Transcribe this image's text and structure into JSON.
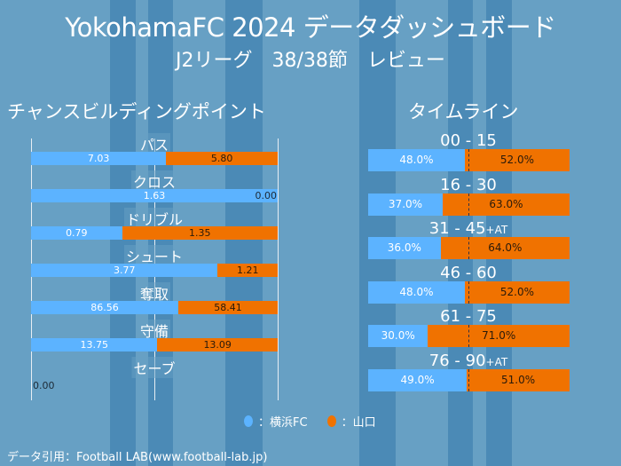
{
  "header": {
    "title": "YokohamaFC 2024 データダッシュボード",
    "subtitle": "J2リーグ　38/38節　レビュー"
  },
  "colors": {
    "home": "#5cb3ff",
    "away": "#f07200",
    "background": "#67a0c4"
  },
  "chance": {
    "title": "チャンスビルディングポイント",
    "rows": [
      {
        "label": "パス",
        "home": "7.03",
        "away": "5.80"
      },
      {
        "label": "クロス",
        "home": "1.63",
        "away": "0.00"
      },
      {
        "label": "ドリブル",
        "home": "0.79",
        "away": "1.35"
      },
      {
        "label": "シュート",
        "home": "3.77",
        "away": "1.21"
      },
      {
        "label": "奪取",
        "home": "86.56",
        "away": "58.41"
      },
      {
        "label": "守備",
        "home": "13.75",
        "away": "13.09"
      },
      {
        "label": "セーブ",
        "home": "0.00",
        "away": "0.00"
      }
    ]
  },
  "timeline": {
    "title": "タイムライン",
    "rows": [
      {
        "label": "00 - 15",
        "suffix": "",
        "home": "48.0%",
        "away": "52.0%"
      },
      {
        "label": "16 - 30",
        "suffix": "",
        "home": "37.0%",
        "away": "63.0%"
      },
      {
        "label": "31 - 45",
        "suffix": "+AT",
        "home": "36.0%",
        "away": "64.0%"
      },
      {
        "label": "46 - 60",
        "suffix": "",
        "home": "48.0%",
        "away": "52.0%"
      },
      {
        "label": "61 - 75",
        "suffix": "",
        "home": "30.0%",
        "away": "71.0%"
      },
      {
        "label": "76 - 90",
        "suffix": "+AT",
        "home": "49.0%",
        "away": "51.0%"
      }
    ]
  },
  "legend": {
    "home": "：横浜FC",
    "away": "：山口"
  },
  "footer": "データ引用：Football LAB(www.football-lab.jp)"
}
